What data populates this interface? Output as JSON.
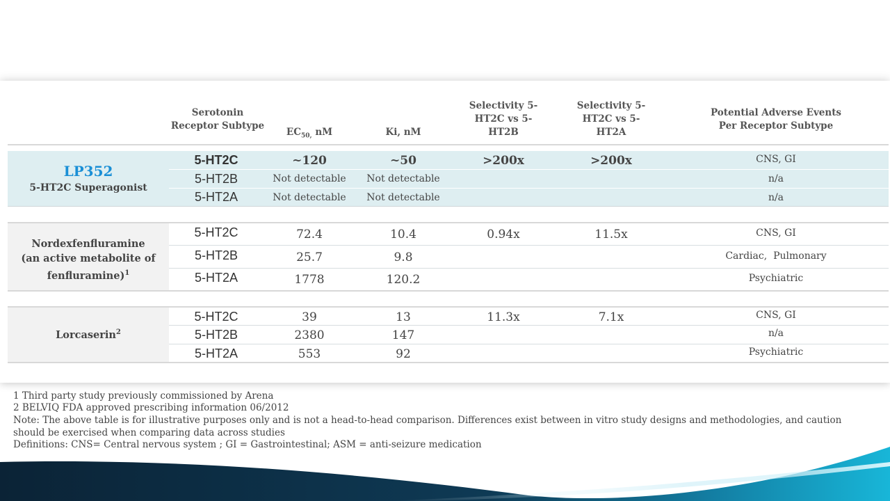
{
  "headers": {
    "subtype": "Serotonin Receptor Subtype",
    "ec50_pre": "EC",
    "ec50_sub": "50,",
    "ec50_post": " nM",
    "ki": "Ki, nM",
    "sel_b": "Selectivity 5-HT2C vs 5-HT2B",
    "sel_a": "Selectivity 5-HT2C vs 5-HT2A",
    "ae": "Potential Adverse Events Per Receptor Subtype"
  },
  "groups": [
    {
      "name": "LP352",
      "subtitle": "5-HT2C Superagonist",
      "rows": [
        {
          "subtype": "5-HT2C",
          "ec50": "~120",
          "ki": "~50",
          "sel_b": ">200x",
          "sel_a": ">200x",
          "ae": "CNS, GI"
        },
        {
          "subtype": "5-HT2B",
          "ec50": "Not detectable",
          "ki": "Not detectable",
          "sel_b": "",
          "sel_a": "",
          "ae": "n/a"
        },
        {
          "subtype": "5-HT2A",
          "ec50": "Not detectable",
          "ki": "Not detectable",
          "sel_b": "",
          "sel_a": "",
          "ae": "n/a"
        }
      ]
    },
    {
      "name_line1": "Nordexfenfluramine",
      "name_line2": "(an active metabolite of",
      "name_line3": "fenfluramine)",
      "name_sup": "1",
      "rows": [
        {
          "subtype": "5-HT2C",
          "ec50": "72.4",
          "ki": "10.4",
          "sel_b": "0.94x",
          "sel_a": "11.5x",
          "ae": "CNS, GI"
        },
        {
          "subtype": "5-HT2B",
          "ec50": "25.7",
          "ki": "9.8",
          "sel_b": "",
          "sel_a": "",
          "ae": "Cardiac,  Pulmonary"
        },
        {
          "subtype": "5-HT2A",
          "ec50": "1778",
          "ki": "120.2",
          "sel_b": "",
          "sel_a": "",
          "ae": "Psychiatric"
        }
      ]
    },
    {
      "name": "Lorcaserin",
      "name_sup": "2",
      "rows": [
        {
          "subtype": "5-HT2C",
          "ec50": "39",
          "ki": "13",
          "sel_b": "11.3x",
          "sel_a": "7.1x",
          "ae": "CNS, GI"
        },
        {
          "subtype": "5-HT2B",
          "ec50": "2380",
          "ki": "147",
          "sel_b": "",
          "sel_a": "",
          "ae": "n/a"
        },
        {
          "subtype": "5-HT2A",
          "ec50": "553",
          "ki": "92",
          "sel_b": "",
          "sel_a": "",
          "ae": "Psychiatric"
        }
      ]
    }
  ],
  "footnotes": {
    "note1": "1 Third party study previously commissioned by Arena",
    "note2": "2 BELVIQ FDA approved prescribing information 06/2012",
    "note3": "Note: The above table is for illustrative purposes only and is not a head-to-head comparison.  Differences exist between in vitro study designs and methodologies, and caution should be exercised when comparing data across studies",
    "note4": "Definitions: CNS= Central nervous system ; GI = Gastrointestinal; ASM = anti-seizure medication"
  },
  "colors": {
    "lp352_band": "#deeef1",
    "group_label_bg": "#f2f2f2",
    "lp352_name": "#1a8fd6",
    "wave_dark": "#0b2336",
    "wave_light": "#18b6d8"
  }
}
